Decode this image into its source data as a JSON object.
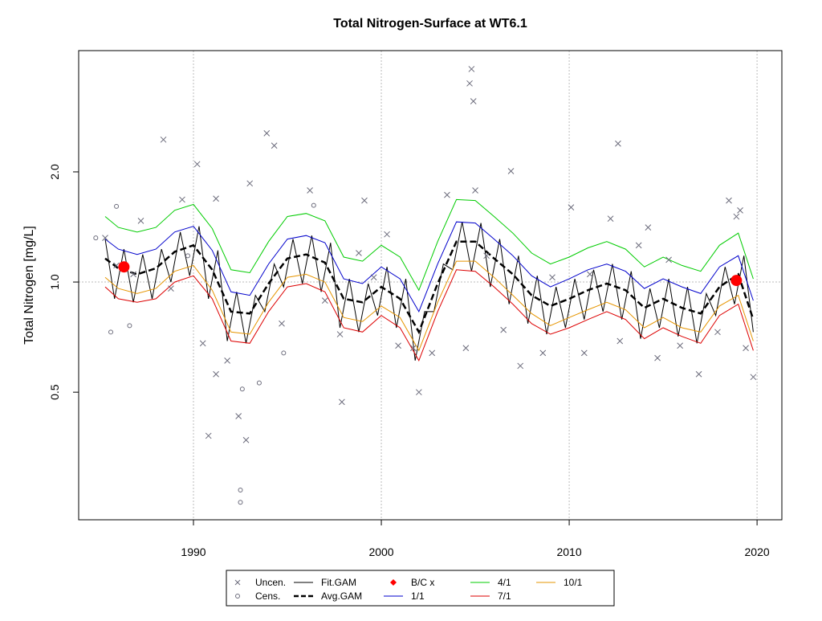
{
  "chart_data": {
    "type": "scatter-line",
    "title": "Total Nitrogen-Surface at WT6.1",
    "ylabel": "Total Nitrogen [mg/L]",
    "xlim": [
      1983.89,
      2021.32
    ],
    "xticks": [
      1990,
      2000,
      2010,
      2020
    ],
    "ylim": [
      0.224,
      4.29
    ],
    "yticks": [
      0.5,
      {
        "value": 1,
        "label": "1.0"
      },
      {
        "value": 2,
        "label": "2.0"
      }
    ],
    "log_y": true,
    "vgrid": true,
    "hline": 1,
    "legend": "bottom",
    "x": [
      1985.3,
      1986,
      1987,
      1988,
      1989,
      1990,
      1991,
      1992,
      1993,
      1994,
      1995,
      1996,
      1997,
      1998,
      1999,
      2000,
      2001,
      2002,
      2003,
      2004,
      2005,
      2006,
      2007,
      2008,
      2009,
      2010,
      2011,
      2012,
      2013,
      2014,
      2015,
      2016,
      2017,
      2018,
      2019,
      2019.8
    ],
    "series": [
      {
        "name": "Uncen.",
        "kind": "points",
        "marker": "x",
        "color": "#6b6b7b",
        "x": [
          1988.4,
          1990.2,
          1993.9,
          1994.3,
          2004.8,
          2004.7,
          2004.9,
          2006.9,
          2012.6,
          1990.8,
          1992.4,
          1992.8,
          1991.2,
          1997.9,
          2002.0,
          1985.3,
          1987.2,
          1989.4,
          1991.2,
          1993.0,
          1996.2,
          1999.1,
          2003.5,
          2005.0,
          2010.1,
          2012.2,
          2014.2,
          2018.5,
          2019.8,
          2016.9,
          2007.4,
          2008.6,
          1990.5,
          1991.8,
          1994.7,
          1997.0,
          1997.8,
          2000.9,
          2001.7,
          2002.7,
          2004.5,
          2006.5,
          2010.8,
          2012.7,
          2014.7,
          2015.9,
          2017.9,
          2019.4,
          1985.9,
          1986.8,
          1988.8,
          1998.8,
          1999.6,
          2000.3,
          2005.6,
          2009.1,
          2011.1,
          2013.7,
          2015.3,
          2018.9,
          2019.1
        ],
        "values": [
          2.45,
          2.1,
          2.55,
          2.36,
          3.82,
          3.49,
          3.12,
          2.01,
          2.39,
          0.38,
          0.43,
          0.37,
          0.56,
          0.47,
          0.5,
          1.32,
          1.47,
          1.68,
          1.69,
          1.86,
          1.78,
          1.67,
          1.73,
          1.78,
          1.6,
          1.49,
          1.41,
          1.67,
          0.55,
          0.56,
          0.59,
          0.64,
          0.68,
          0.61,
          0.77,
          0.89,
          0.72,
          0.67,
          0.66,
          0.64,
          0.66,
          0.74,
          0.64,
          0.69,
          0.62,
          0.67,
          0.73,
          0.66,
          1.11,
          1.05,
          0.96,
          1.2,
          1.03,
          1.35,
          1.18,
          1.03,
          1.05,
          1.26,
          1.15,
          1.51,
          1.57
        ]
      },
      {
        "name": "Cens.",
        "kind": "points",
        "marker": "circle",
        "color": "#6b6b7b",
        "x": [
          1985.6,
          1986.6,
          1992.5,
          1992.5,
          1992.6,
          1993.5,
          1994.8,
          1989.7,
          1996.4,
          1984.8,
          1985.9
        ],
        "values": [
          0.73,
          0.76,
          0.27,
          0.25,
          0.51,
          0.53,
          0.64,
          1.18,
          1.62,
          1.32,
          1.61
        ]
      },
      {
        "name": "Fit.GAM",
        "kind": "line",
        "color": "#000000",
        "width": 1,
        "x": [
          1985.3,
          1985.8,
          1986.3,
          1986.8,
          1987.3,
          1987.8,
          1988.3,
          1988.8,
          1989.3,
          1989.8,
          1990.3,
          1990.8,
          1991.3,
          1991.8,
          1992.3,
          1992.8,
          1993.3,
          1993.8,
          1994.3,
          1994.8,
          1995.3,
          1995.8,
          1996.3,
          1996.8,
          1997.3,
          1997.8,
          1998.3,
          1998.8,
          1999.3,
          1999.8,
          2000.3,
          2000.8,
          2001.3,
          2001.8,
          2002.3,
          2002.8,
          2003.3,
          2003.8,
          2004.3,
          2004.8,
          2005.3,
          2005.8,
          2006.3,
          2006.8,
          2007.3,
          2007.8,
          2008.3,
          2008.8,
          2009.3,
          2009.8,
          2010.3,
          2010.8,
          2011.3,
          2011.8,
          2012.3,
          2012.8,
          2013.3,
          2013.8,
          2014.3,
          2014.8,
          2015.3,
          2015.8,
          2016.3,
          2016.8,
          2017.3,
          2017.8,
          2018.3,
          2018.8,
          2019.3,
          2019.8
        ],
        "values": [
          1.31,
          0.9,
          1.23,
          0.88,
          1.19,
          0.9,
          1.23,
          1.0,
          1.37,
          1.04,
          1.42,
          0.9,
          1.22,
          0.69,
          0.94,
          0.68,
          0.92,
          0.83,
          1.12,
          0.97,
          1.31,
          0.99,
          1.34,
          0.94,
          1.28,
          0.75,
          1.02,
          0.73,
          0.99,
          0.81,
          1.1,
          0.75,
          1.02,
          0.61,
          0.83,
          0.83,
          1.12,
          1.08,
          1.46,
          1.07,
          1.45,
          0.97,
          1.31,
          0.87,
          1.18,
          0.77,
          1.04,
          0.72,
          0.97,
          0.75,
          1.02,
          0.79,
          1.08,
          0.83,
          1.12,
          0.79,
          1.07,
          0.7,
          0.96,
          0.75,
          1.02,
          0.71,
          0.97,
          0.68,
          0.93,
          0.81,
          1.1,
          0.87,
          1.18,
          0.73
        ]
      },
      {
        "name": "Avg.GAM",
        "kind": "line",
        "color": "#000000",
        "width": 2.5,
        "dash": true,
        "values": [
          1.16,
          1.09,
          1.05,
          1.09,
          1.21,
          1.26,
          1.08,
          0.83,
          0.82,
          0.99,
          1.16,
          1.19,
          1.13,
          0.9,
          0.88,
          0.97,
          0.9,
          0.73,
          0.99,
          1.29,
          1.29,
          1.16,
          1.05,
          0.92,
          0.86,
          0.9,
          0.95,
          0.99,
          0.95,
          0.85,
          0.9,
          0.85,
          0.82,
          0.97,
          1.05,
          0.79
        ]
      },
      {
        "name": "B/C x",
        "kind": "points",
        "marker": "dot",
        "color": "#ff0000",
        "x": [
          1986.3,
          2018.9
        ],
        "values": [
          1.1,
          1.01
        ]
      },
      {
        "name": "1/1",
        "kind": "line",
        "color": "#0000cc",
        "width": 1,
        "values": [
          1.31,
          1.23,
          1.19,
          1.23,
          1.37,
          1.42,
          1.22,
          0.94,
          0.92,
          1.12,
          1.31,
          1.34,
          1.28,
          1.02,
          0.99,
          1.1,
          1.02,
          0.83,
          1.12,
          1.46,
          1.45,
          1.31,
          1.18,
          1.04,
          0.97,
          1.02,
          1.08,
          1.12,
          1.07,
          0.96,
          1.02,
          0.97,
          0.93,
          1.1,
          1.18,
          0.89
        ]
      },
      {
        "name": "4/1",
        "kind": "line",
        "color": "#00cc00",
        "width": 1,
        "values": [
          1.51,
          1.41,
          1.37,
          1.41,
          1.57,
          1.63,
          1.4,
          1.08,
          1.06,
          1.29,
          1.51,
          1.54,
          1.47,
          1.17,
          1.14,
          1.26,
          1.17,
          0.95,
          1.29,
          1.68,
          1.67,
          1.51,
          1.36,
          1.2,
          1.12,
          1.17,
          1.24,
          1.29,
          1.23,
          1.1,
          1.17,
          1.11,
          1.07,
          1.26,
          1.36,
          1.02
        ]
      },
      {
        "name": "7/1",
        "kind": "line",
        "color": "#dd0000",
        "width": 1,
        "values": [
          0.97,
          0.9,
          0.88,
          0.9,
          1.0,
          1.04,
          0.9,
          0.69,
          0.68,
          0.83,
          0.97,
          0.99,
          0.94,
          0.75,
          0.73,
          0.81,
          0.75,
          0.61,
          0.83,
          1.08,
          1.07,
          0.97,
          0.87,
          0.77,
          0.72,
          0.75,
          0.79,
          0.83,
          0.79,
          0.7,
          0.75,
          0.71,
          0.68,
          0.81,
          0.87,
          0.65
        ]
      },
      {
        "name": "10/1",
        "kind": "line",
        "color": "#e69500",
        "width": 1,
        "values": [
          1.03,
          0.96,
          0.93,
          0.96,
          1.07,
          1.11,
          0.95,
          0.73,
          0.72,
          0.88,
          1.03,
          1.05,
          1.0,
          0.8,
          0.78,
          0.86,
          0.8,
          0.65,
          0.88,
          1.14,
          1.14,
          1.03,
          0.92,
          0.82,
          0.76,
          0.8,
          0.84,
          0.88,
          0.84,
          0.75,
          0.8,
          0.75,
          0.73,
          0.86,
          0.92,
          0.69
        ]
      }
    ]
  }
}
